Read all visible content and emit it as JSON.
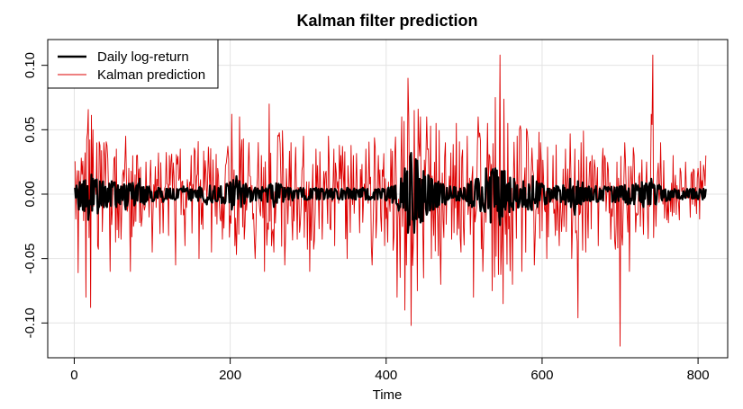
{
  "chart_data": {
    "type": "line",
    "title": "Kalman filter prediction",
    "xlabel": "Time",
    "ylabel": "",
    "xlim": [
      -34,
      838
    ],
    "ylim": [
      -0.127,
      0.12
    ],
    "x_ticks": [
      0,
      200,
      400,
      600,
      800
    ],
    "x_tick_labels": [
      "0",
      "200",
      "400",
      "600",
      "800"
    ],
    "y_ticks": [
      -0.1,
      -0.05,
      0.0,
      0.05,
      0.1
    ],
    "y_tick_labels": [
      "-0.10",
      "-0.05",
      "0.00",
      "0.05",
      "0.10"
    ],
    "grid": true,
    "legend_position": "top-left",
    "series": [
      {
        "name": "Daily log-return",
        "color": "#000000",
        "style": "bold-line",
        "x_start": 1,
        "x_end": 810,
        "points": [
          [
            1,
            0.005
          ],
          [
            6,
            -0.012
          ],
          [
            12,
            0.01
          ],
          [
            18,
            -0.02
          ],
          [
            24,
            0.012
          ],
          [
            30,
            -0.015
          ],
          [
            36,
            0.008
          ],
          [
            42,
            -0.01
          ],
          [
            48,
            0.01
          ],
          [
            54,
            -0.01
          ],
          [
            60,
            0.006
          ],
          [
            66,
            -0.012
          ],
          [
            72,
            0.008
          ],
          [
            78,
            -0.007
          ],
          [
            84,
            0.012
          ],
          [
            90,
            -0.008
          ],
          [
            96,
            0.006
          ],
          [
            102,
            -0.005
          ],
          [
            108,
            0.005
          ],
          [
            114,
            -0.006
          ],
          [
            120,
            0.004
          ],
          [
            130,
            -0.004
          ],
          [
            140,
            0.006
          ],
          [
            150,
            -0.005
          ],
          [
            160,
            0.005
          ],
          [
            170,
            -0.008
          ],
          [
            180,
            0.006
          ],
          [
            190,
            -0.006
          ],
          [
            196,
            0.008
          ],
          [
            202,
            -0.012
          ],
          [
            208,
            0.014
          ],
          [
            214,
            -0.01
          ],
          [
            220,
            0.008
          ],
          [
            226,
            -0.006
          ],
          [
            232,
            0.005
          ],
          [
            240,
            -0.005
          ],
          [
            250,
            0.007
          ],
          [
            256,
            -0.01
          ],
          [
            262,
            0.008
          ],
          [
            268,
            -0.006
          ],
          [
            274,
            0.005
          ],
          [
            280,
            -0.005
          ],
          [
            290,
            0.005
          ],
          [
            300,
            -0.004
          ],
          [
            310,
            0.005
          ],
          [
            320,
            -0.004
          ],
          [
            330,
            0.004
          ],
          [
            340,
            -0.004
          ],
          [
            350,
            0.005
          ],
          [
            360,
            -0.004
          ],
          [
            370,
            0.005
          ],
          [
            380,
            -0.004
          ],
          [
            390,
            0.004
          ],
          [
            400,
            -0.005
          ],
          [
            410,
            0.006
          ],
          [
            418,
            -0.01
          ],
          [
            424,
            0.02
          ],
          [
            428,
            -0.03
          ],
          [
            432,
            0.032
          ],
          [
            436,
            -0.03
          ],
          [
            440,
            0.026
          ],
          [
            444,
            -0.022
          ],
          [
            448,
            0.018
          ],
          [
            452,
            -0.016
          ],
          [
            458,
            0.012
          ],
          [
            464,
            -0.01
          ],
          [
            470,
            0.008
          ],
          [
            476,
            -0.008
          ],
          [
            482,
            0.006
          ],
          [
            490,
            -0.005
          ],
          [
            500,
            0.005
          ],
          [
            510,
            -0.01
          ],
          [
            516,
            0.012
          ],
          [
            522,
            -0.01
          ],
          [
            528,
            0.02
          ],
          [
            534,
            -0.022
          ],
          [
            540,
            0.02
          ],
          [
            546,
            -0.024
          ],
          [
            552,
            0.018
          ],
          [
            558,
            -0.014
          ],
          [
            564,
            0.012
          ],
          [
            570,
            -0.01
          ],
          [
            576,
            0.01
          ],
          [
            582,
            -0.012
          ],
          [
            588,
            0.014
          ],
          [
            594,
            -0.01
          ],
          [
            600,
            0.008
          ],
          [
            610,
            -0.006
          ],
          [
            620,
            0.006
          ],
          [
            630,
            -0.008
          ],
          [
            636,
            0.012
          ],
          [
            642,
            -0.016
          ],
          [
            646,
            0.01
          ],
          [
            650,
            -0.008
          ],
          [
            660,
            0.006
          ],
          [
            670,
            -0.006
          ],
          [
            680,
            0.006
          ],
          [
            690,
            -0.006
          ],
          [
            700,
            0.006
          ],
          [
            710,
            -0.008
          ],
          [
            720,
            0.008
          ],
          [
            730,
            -0.01
          ],
          [
            740,
            0.012
          ],
          [
            746,
            -0.008
          ],
          [
            752,
            0.006
          ],
          [
            760,
            -0.005
          ],
          [
            770,
            0.004
          ],
          [
            780,
            -0.004
          ],
          [
            790,
            0.004
          ],
          [
            800,
            -0.004
          ],
          [
            810,
            0.004
          ]
        ]
      },
      {
        "name": "Kalman prediction",
        "color": "#dd0000",
        "style": "thin-line",
        "x_start": 1,
        "x_end": 810,
        "points": [
          [
            5,
            -0.061
          ],
          [
            9,
            0.028
          ],
          [
            15,
            -0.08
          ],
          [
            21,
            -0.088
          ],
          [
            24,
            0.05
          ],
          [
            30,
            -0.04
          ],
          [
            38,
            0.04
          ],
          [
            46,
            -0.06
          ],
          [
            54,
            0.035
          ],
          [
            60,
            -0.035
          ],
          [
            66,
            0.045
          ],
          [
            72,
            -0.06
          ],
          [
            80,
            0.03
          ],
          [
            86,
            -0.025
          ],
          [
            92,
            0.025
          ],
          [
            100,
            -0.045
          ],
          [
            108,
            0.032
          ],
          [
            114,
            -0.03
          ],
          [
            122,
            0.03
          ],
          [
            130,
            -0.055
          ],
          [
            136,
            0.035
          ],
          [
            142,
            -0.04
          ],
          [
            150,
            0.03
          ],
          [
            160,
            -0.05
          ],
          [
            168,
            0.026
          ],
          [
            176,
            -0.045
          ],
          [
            184,
            0.02
          ],
          [
            190,
            -0.035
          ],
          [
            196,
            0.03
          ],
          [
            202,
            0.062
          ],
          [
            206,
            -0.04
          ],
          [
            212,
            0.06
          ],
          [
            218,
            -0.035
          ],
          [
            224,
            0.04
          ],
          [
            232,
            -0.05
          ],
          [
            240,
            0.03
          ],
          [
            244,
            -0.06
          ],
          [
            250,
            0.07
          ],
          [
            256,
            -0.045
          ],
          [
            262,
            0.045
          ],
          [
            270,
            -0.055
          ],
          [
            278,
            0.04
          ],
          [
            286,
            -0.035
          ],
          [
            294,
            0.045
          ],
          [
            302,
            -0.06
          ],
          [
            310,
            0.035
          ],
          [
            318,
            -0.035
          ],
          [
            326,
            0.045
          ],
          [
            334,
            -0.04
          ],
          [
            342,
            0.03
          ],
          [
            350,
            -0.05
          ],
          [
            358,
            0.03
          ],
          [
            366,
            -0.03
          ],
          [
            374,
            0.035
          ],
          [
            382,
            -0.055
          ],
          [
            390,
            0.03
          ],
          [
            398,
            -0.04
          ],
          [
            406,
            0.035
          ],
          [
            414,
            -0.08
          ],
          [
            420,
            0.06
          ],
          [
            424,
            -0.09
          ],
          [
            428,
            0.09
          ],
          [
            432,
            -0.102
          ],
          [
            436,
            0.065
          ],
          [
            440,
            -0.075
          ],
          [
            444,
            0.06
          ],
          [
            448,
            -0.065
          ],
          [
            452,
            0.06
          ],
          [
            458,
            -0.05
          ],
          [
            464,
            0.055
          ],
          [
            470,
            -0.07
          ],
          [
            476,
            0.04
          ],
          [
            484,
            -0.035
          ],
          [
            490,
            0.055
          ],
          [
            496,
            -0.045
          ],
          [
            504,
            0.045
          ],
          [
            512,
            -0.08
          ],
          [
            518,
            0.06
          ],
          [
            524,
            -0.06
          ],
          [
            530,
            0.055
          ],
          [
            536,
            -0.075
          ],
          [
            540,
            0.075
          ],
          [
            546,
            0.108
          ],
          [
            550,
            -0.085
          ],
          [
            556,
            0.055
          ],
          [
            562,
            -0.07
          ],
          [
            568,
            0.045
          ],
          [
            574,
            -0.06
          ],
          [
            582,
            0.04
          ],
          [
            590,
            -0.055
          ],
          [
            598,
            0.04
          ],
          [
            606,
            -0.05
          ],
          [
            614,
            0.03
          ],
          [
            622,
            -0.04
          ],
          [
            630,
            0.035
          ],
          [
            638,
            -0.05
          ],
          [
            642,
            0.035
          ],
          [
            646,
            -0.096
          ],
          [
            650,
            0.04
          ],
          [
            656,
            -0.045
          ],
          [
            664,
            0.03
          ],
          [
            672,
            -0.04
          ],
          [
            680,
            0.03
          ],
          [
            688,
            -0.035
          ],
          [
            696,
            0.025
          ],
          [
            700,
            -0.118
          ],
          [
            706,
            0.04
          ],
          [
            712,
            -0.06
          ],
          [
            718,
            0.03
          ],
          [
            726,
            -0.025
          ],
          [
            734,
            0.025
          ],
          [
            740,
            0.062
          ],
          [
            742,
            0.108
          ],
          [
            746,
            -0.025
          ],
          [
            752,
            0.04
          ],
          [
            760,
            -0.02
          ],
          [
            768,
            0.03
          ],
          [
            776,
            -0.02
          ],
          [
            784,
            0.025
          ],
          [
            790,
            -0.018
          ],
          [
            800,
            0.02
          ],
          [
            810,
            0.03
          ]
        ]
      }
    ]
  }
}
